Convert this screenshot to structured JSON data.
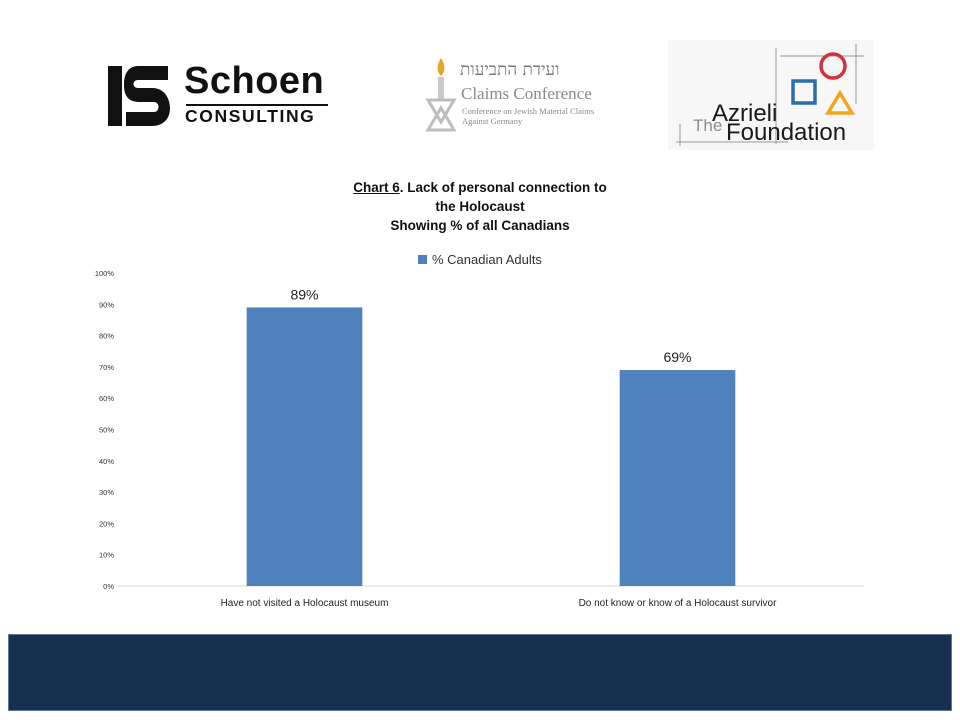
{
  "logos": {
    "schoen": {
      "name": "Schoen",
      "sub": "CONSULTING"
    },
    "claims": {
      "hebrew": "ועידת התביעות",
      "name": "Claims Conference",
      "sub": "Conference on Jewish Material Claims Against Germany"
    },
    "azrieli": {
      "the": "The",
      "name": "Azrieli",
      "foundation": "Foundation"
    }
  },
  "colors": {
    "bar": "#4f81bd",
    "axis": "#d9d9d9",
    "footer": "#17304f"
  },
  "chart_data": {
    "type": "bar",
    "title_label": "Chart 6",
    "title_rest": ". Lack of personal connection to",
    "title_line2": "the Holocaust",
    "subtitle": "Showing % of all Canadians",
    "categories": [
      "Have not visited a Holocaust museum",
      "Do not know or know of a Holocaust survivor"
    ],
    "series": [
      {
        "name": "% Canadian Adults",
        "values": [
          89,
          69
        ]
      }
    ],
    "data_labels": [
      "89%",
      "69%"
    ],
    "yticks": [
      "0%",
      "10%",
      "20%",
      "30%",
      "40%",
      "50%",
      "60%",
      "70%",
      "80%",
      "90%",
      "100%"
    ],
    "ylim": [
      0,
      100
    ],
    "legend": "top-center",
    "grid": false
  }
}
